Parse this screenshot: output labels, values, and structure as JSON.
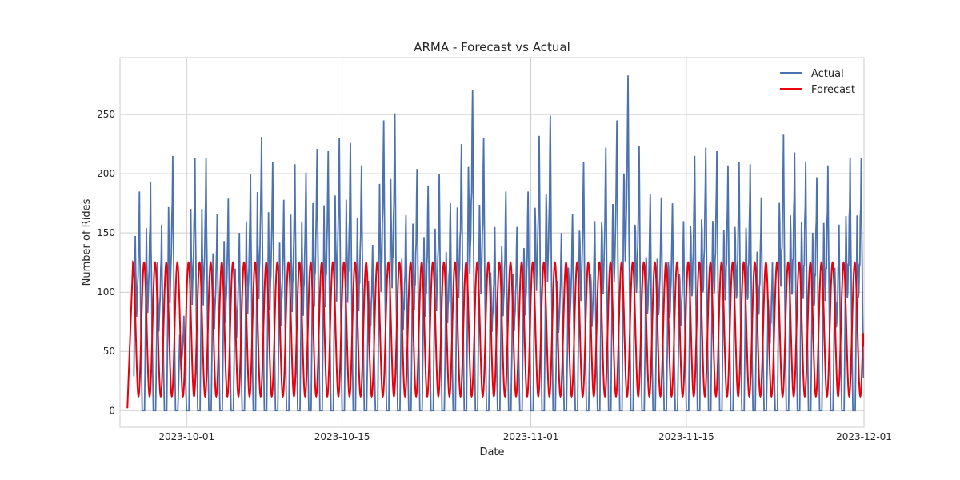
{
  "chart_data": {
    "type": "line",
    "title": "ARMA - Forecast vs Actual",
    "xlabel": "Date",
    "ylabel": "Number of Rides",
    "x_range": [
      "2023-09-25",
      "2023-12-01"
    ],
    "ylim": [
      -14,
      298
    ],
    "x_ticks": [
      "2023-10-01",
      "2023-10-15",
      "2023-11-01",
      "2023-11-15",
      "2023-12-01"
    ],
    "y_ticks": [
      0,
      50,
      100,
      150,
      200,
      250
    ],
    "grid": true,
    "legend_position": "top-right",
    "series": [
      {
        "name": "Actual",
        "color": "#4c72b0",
        "daily_peaks": [
          185,
          193,
          157,
          215,
          80,
          213,
          213,
          166,
          179,
          150,
          200,
          231,
          210,
          178,
          208,
          201,
          221,
          219,
          230,
          226,
          207,
          140,
          245,
          251,
          165,
          204,
          190,
          200,
          175,
          225,
          271,
          230,
          155,
          185,
          155,
          185,
          232,
          249,
          150,
          166,
          210,
          160,
          222,
          245,
          283,
          223,
          183,
          180,
          175,
          160,
          215,
          222,
          219,
          207,
          210,
          208,
          180,
          125,
          233,
          218,
          210,
          197,
          207,
          157,
          213
        ],
        "trough": 0
      },
      {
        "name": "Forecast",
        "color": "#e8000b",
        "peak": 125,
        "trough": 12,
        "period_days": 1,
        "start_value": 2,
        "end_value": 54
      }
    ]
  }
}
